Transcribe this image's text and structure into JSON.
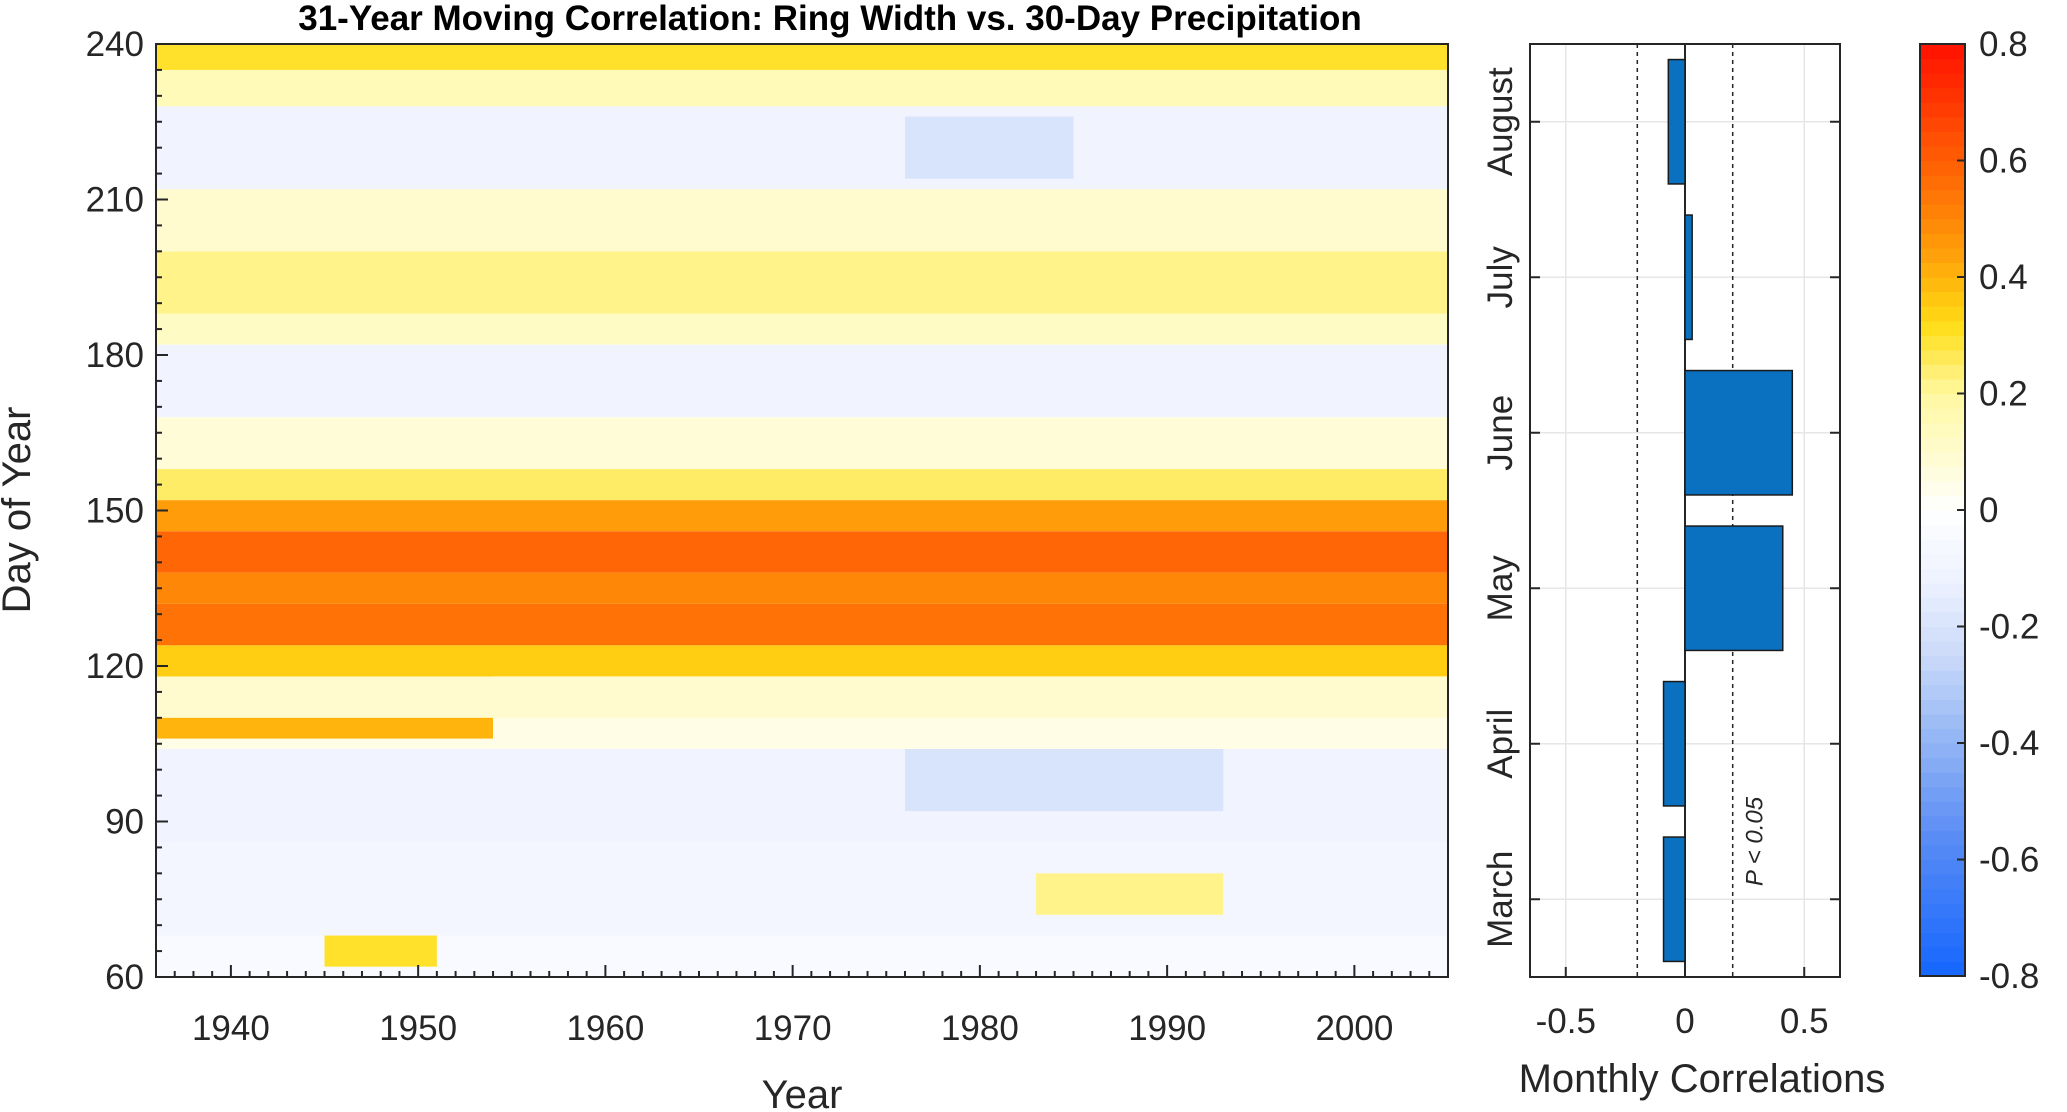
{
  "chart_data": [
    {
      "type": "heatmap",
      "title": "31-Year Moving Correlation: Ring Width vs. 30-Day Precipitation",
      "xlabel": "Year",
      "ylabel": "Day of Year",
      "xlim": [
        1936,
        2005
      ],
      "ylim": [
        60,
        240
      ],
      "xticks": [
        1940,
        1950,
        1960,
        1970,
        1980,
        1990,
        2000
      ],
      "yticks": [
        60,
        90,
        120,
        150,
        180,
        210,
        240
      ],
      "zlim": [
        -0.8,
        0.8
      ],
      "bands": [
        {
          "day_from": 60,
          "day_to": 68,
          "value": -0.05
        },
        {
          "day_from": 62,
          "day_to": 69,
          "year_from": 1945,
          "year_to": 1951,
          "value": 0.3
        },
        {
          "day_from": 68,
          "day_to": 86,
          "value": -0.08
        },
        {
          "day_from": 72,
          "day_to": 80,
          "year_from": 1983,
          "year_to": 1993,
          "value": 0.22
        },
        {
          "day_from": 86,
          "day_to": 104,
          "value": -0.1
        },
        {
          "day_from": 92,
          "day_to": 104,
          "year_from": 1976,
          "year_to": 1993,
          "value": -0.2
        },
        {
          "day_from": 104,
          "day_to": 110,
          "value": 0.05
        },
        {
          "day_from": 106,
          "day_to": 120,
          "year_from": 1936,
          "year_to": 1954,
          "value": 0.4
        },
        {
          "day_from": 110,
          "day_to": 118,
          "value": 0.1
        },
        {
          "day_from": 118,
          "day_to": 124,
          "value": 0.35
        },
        {
          "day_from": 124,
          "day_to": 132,
          "value": 0.55
        },
        {
          "day_from": 132,
          "day_to": 138,
          "value": 0.5
        },
        {
          "day_from": 138,
          "day_to": 146,
          "value": 0.58
        },
        {
          "day_from": 146,
          "day_to": 152,
          "value": 0.45
        },
        {
          "day_from": 152,
          "day_to": 158,
          "value": 0.25
        },
        {
          "day_from": 158,
          "day_to": 168,
          "value": 0.08
        },
        {
          "day_from": 168,
          "day_to": 182,
          "value": -0.1
        },
        {
          "day_from": 182,
          "day_to": 188,
          "value": 0.12
        },
        {
          "day_from": 188,
          "day_to": 200,
          "value": 0.22
        },
        {
          "day_from": 200,
          "day_to": 212,
          "value": 0.1
        },
        {
          "day_from": 212,
          "day_to": 228,
          "value": -0.1
        },
        {
          "day_from": 214,
          "day_to": 226,
          "year_from": 1976,
          "year_to": 1985,
          "value": -0.2
        },
        {
          "day_from": 228,
          "day_to": 235,
          "value": 0.15
        },
        {
          "day_from": 235,
          "day_to": 240,
          "value": 0.3
        }
      ]
    },
    {
      "type": "bar",
      "orientation": "horizontal",
      "xlabel": "Monthly Correlations",
      "categories": [
        "March",
        "April",
        "May",
        "June",
        "July",
        "August"
      ],
      "values": [
        -0.09,
        -0.09,
        0.41,
        0.45,
        0.03,
        -0.07
      ],
      "xlim": [
        -0.65,
        0.65
      ],
      "xticks": [
        -0.5,
        0,
        0.5
      ],
      "xticklabels": [
        "-0.5",
        "0",
        "0.5"
      ],
      "significance_threshold": 0.2,
      "annotation": "P < 0.05",
      "bar_color": "#0a70c0"
    },
    {
      "type": "colorbar",
      "range": [
        -0.8,
        0.8
      ],
      "ticks": [
        -0.8,
        -0.6,
        -0.4,
        -0.2,
        0,
        0.2,
        0.4,
        0.6,
        0.8
      ],
      "ticklabels": [
        "-0.8",
        "-0.6",
        "-0.4",
        "-0.2",
        "0",
        "0.2",
        "0.4",
        "0.6",
        "0.8"
      ],
      "neg_color": "#1466ff",
      "pos_color": "#ff1000",
      "mid_color": "#ffffff"
    }
  ]
}
